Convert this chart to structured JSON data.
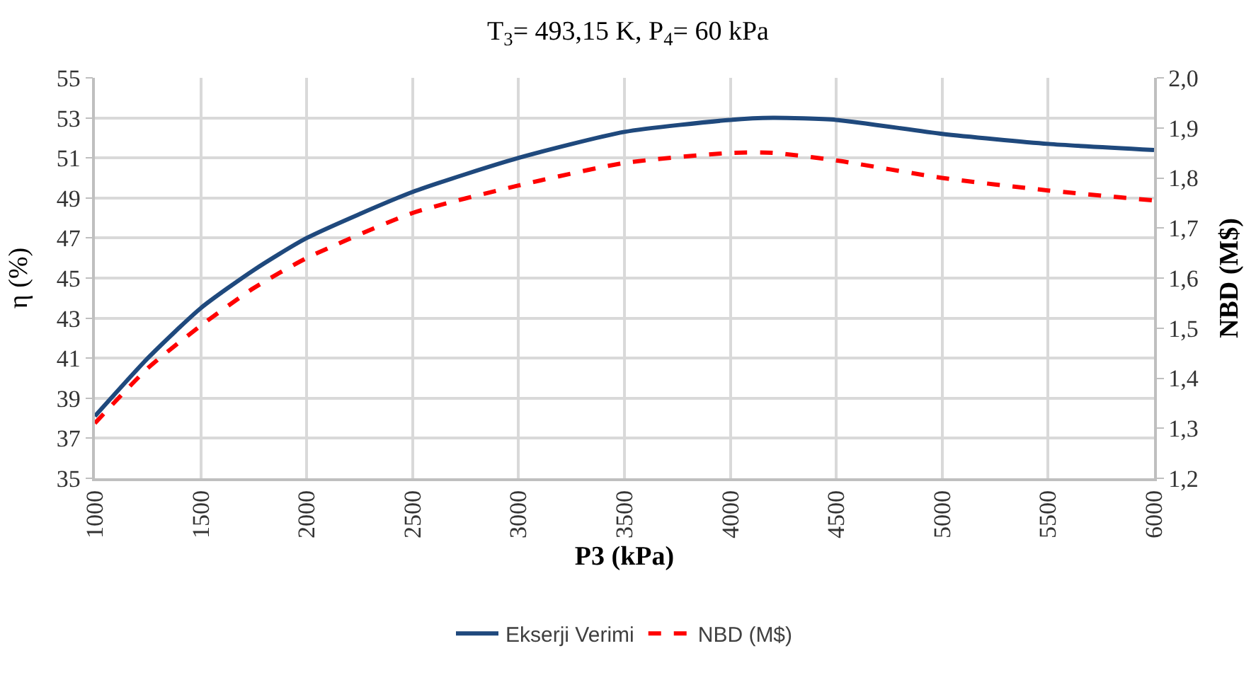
{
  "chart_data": {
    "type": "line",
    "title": "T$_{3}$= 493,15 K, P$_{4}$= 60 kPa",
    "xlabel": "P3 (kPa)",
    "ylabel": "η (%)",
    "y2label": "NBD (M$)",
    "x": [
      1000,
      1250,
      1500,
      1750,
      2000,
      2500,
      3000,
      3500,
      4000,
      4200,
      4500,
      5000,
      5500,
      6000
    ],
    "series": [
      {
        "name": "Ekserji Verimi",
        "color": "#1f497d",
        "line_style": "solid",
        "values": [
          38.1,
          41.0,
          43.5,
          45.4,
          47.0,
          49.3,
          51.0,
          52.3,
          52.9,
          53.0,
          52.9,
          52.2,
          51.7,
          51.4
        ]
      },
      {
        "name": "NBD (M$)",
        "color": "#ff0000",
        "line_style": "dashed",
        "axis": "y2",
        "values": [
          1.31,
          1.42,
          1.505,
          1.58,
          1.64,
          1.73,
          1.785,
          1.83,
          1.85,
          1.85,
          1.835,
          1.8,
          1.775,
          1.755
        ]
      }
    ],
    "xlim": [
      1000,
      6000
    ],
    "xticks": [
      1000,
      1500,
      2000,
      2500,
      3000,
      3500,
      4000,
      4500,
      5000,
      5500,
      6000
    ],
    "ylim": [
      35,
      55
    ],
    "yticks": [
      35,
      37,
      39,
      41,
      43,
      45,
      47,
      49,
      51,
      53,
      55
    ],
    "y2lim": [
      1.2,
      2.0
    ],
    "y2ticks": [
      {
        "value": 1.2,
        "label": "1,2"
      },
      {
        "value": 1.3,
        "label": "1,3"
      },
      {
        "value": 1.4,
        "label": "1,4"
      },
      {
        "value": 1.5,
        "label": "1,5"
      },
      {
        "value": 1.6,
        "label": "1,6"
      },
      {
        "value": 1.7,
        "label": "1,7"
      },
      {
        "value": 1.8,
        "label": "1,8"
      },
      {
        "value": 1.9,
        "label": "1,9"
      },
      {
        "value": 2.0,
        "label": "2,0"
      }
    ],
    "grid": true,
    "legend": "bottom",
    "marker": "none"
  }
}
